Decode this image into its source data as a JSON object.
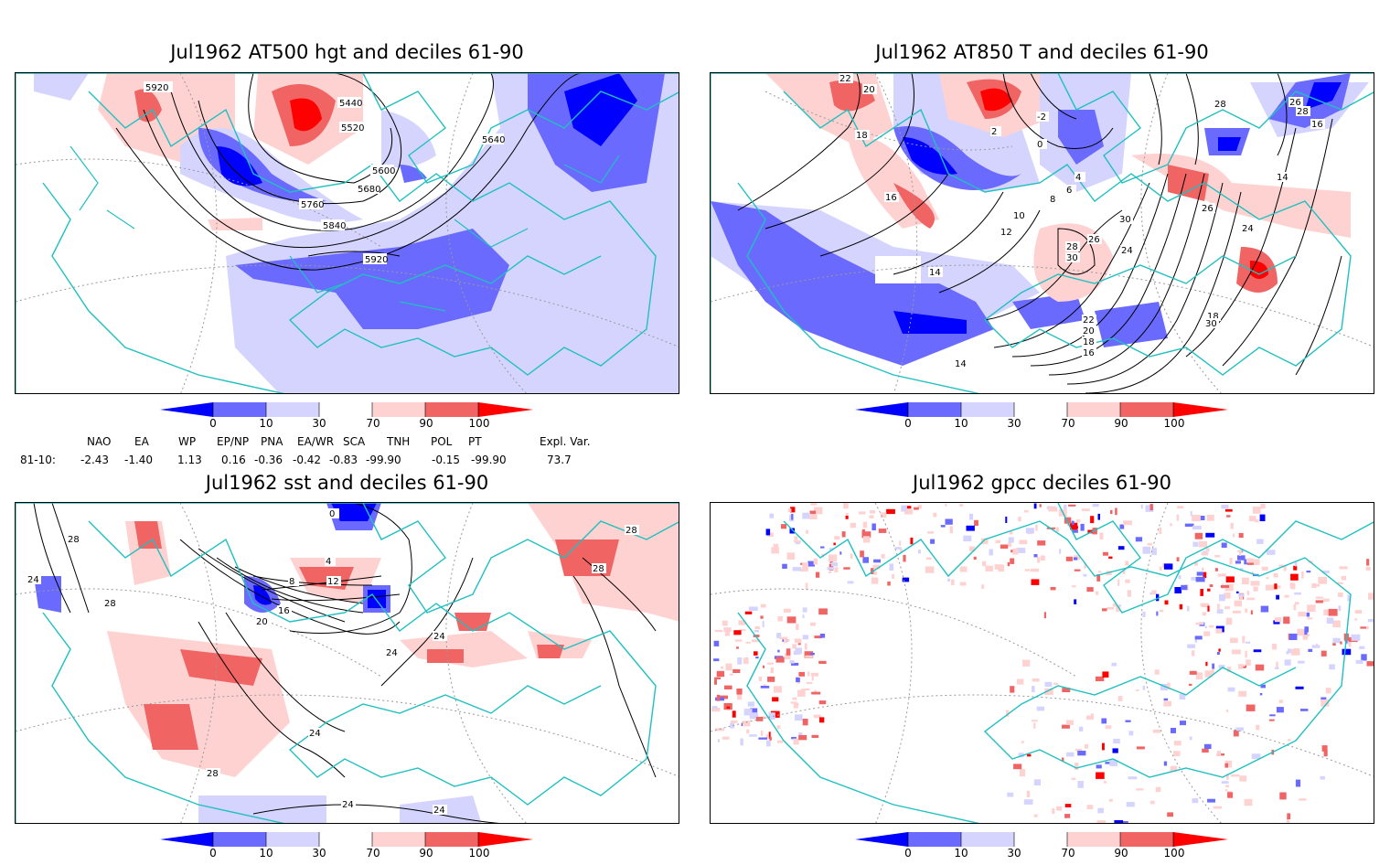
{
  "panels": [
    {
      "id": "p1",
      "title": "Jul1962 AT500 hgt and deciles 61-90",
      "contour_labels": [
        "5920",
        "5440",
        "5520",
        "5600",
        "5640",
        "5680",
        "5760",
        "5840",
        "5920"
      ]
    },
    {
      "id": "p2",
      "title": "Jul1962 AT850 T and deciles 61-90",
      "contour_labels": [
        "22",
        "20",
        "18",
        "16",
        "12",
        "14",
        "14",
        "10",
        "8",
        "6",
        "4",
        "2",
        "0",
        "-2",
        "30",
        "26",
        "28",
        "24",
        "18",
        "16",
        "30",
        "28",
        "26",
        "24",
        "22",
        "20",
        "18",
        "16",
        "14",
        "26",
        "28",
        "30",
        "16"
      ]
    },
    {
      "id": "p3",
      "title": "Jul1962 sst and deciles 61-90",
      "contour_labels": [
        "28",
        "24",
        "28",
        "20",
        "16",
        "12",
        "8",
        "4",
        "0",
        "28",
        "28",
        "24",
        "24",
        "24",
        "28",
        "24",
        "24"
      ]
    },
    {
      "id": "p4",
      "title": "Jul1962 gpcc deciles 61-90",
      "contour_labels": []
    }
  ],
  "colorbar": {
    "ticks": [
      "0",
      "10",
      "30",
      "70",
      "90",
      "100"
    ],
    "colors": [
      "#0000ff",
      "#6a6aff",
      "#d4d4ff",
      "#ffffff",
      "#ffd2d2",
      "#f06464",
      "#ff0000"
    ]
  },
  "indices": {
    "headers": [
      "NAO",
      "EA",
      "WP",
      "EP/NP",
      "PNA",
      "EA/WR",
      "SCA",
      "TNH",
      "POL",
      "PT",
      "Expl. Var."
    ],
    "row_label": "81-10:",
    "values": [
      "-2.43",
      "-1.40",
      "1.13",
      "0.16",
      "-0.36",
      "-0.42",
      "-0.83",
      "-99.90",
      "-0.15",
      "-99.90",
      "73.7"
    ]
  },
  "colors": {
    "coast": "#20c0c0",
    "contour": "#000000",
    "grid": "#999999"
  }
}
